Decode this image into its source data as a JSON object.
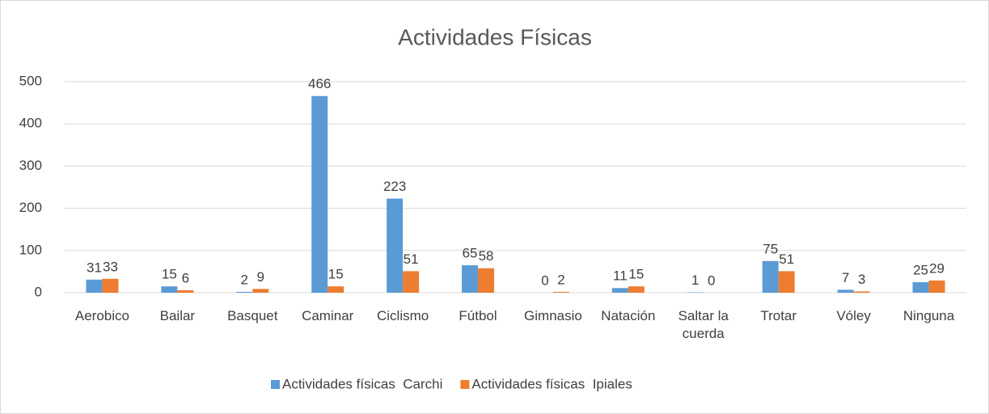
{
  "chart_data": {
    "type": "bar",
    "title": "Actividades Físicas",
    "categories": [
      "Aerobico",
      "Bailar",
      "Basquet",
      "Caminar",
      "Ciclismo",
      "Fútbol",
      "Gimnasio",
      "Natación",
      "Saltar la cuerda",
      "Trotar",
      "Vóley",
      "Ninguna"
    ],
    "series": [
      {
        "name": "Actividades físicas  Carchi",
        "color": "#5b9bd5",
        "values": [
          31,
          15,
          2,
          466,
          223,
          65,
          0,
          11,
          1,
          75,
          7,
          25
        ]
      },
      {
        "name": "Actividades físicas  Ipiales",
        "color": "#ed7d31",
        "values": [
          33,
          6,
          9,
          15,
          51,
          58,
          2,
          15,
          0,
          51,
          3,
          29
        ]
      }
    ],
    "ylim": [
      0,
      500
    ],
    "yticks": [
      0,
      100,
      200,
      300,
      400,
      500
    ],
    "grid": true,
    "legend": "bottom"
  }
}
